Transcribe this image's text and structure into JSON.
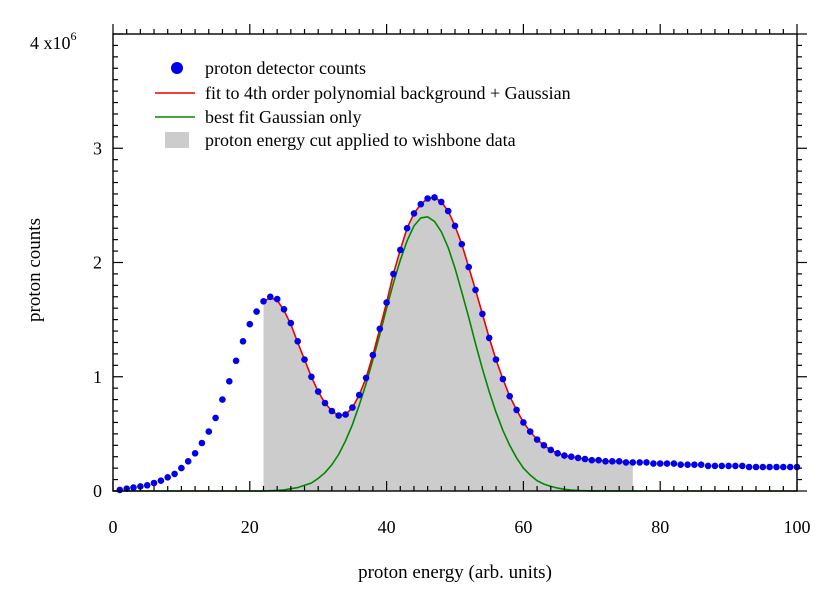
{
  "chart_data": {
    "type": "line",
    "title": "",
    "xlabel": "proton energy (arb. units)",
    "ylabel": "proton counts",
    "xlim": [
      0,
      100
    ],
    "ylim": [
      0,
      4
    ],
    "y_multiplier_label": "4 x10",
    "y_multiplier_exp": "6",
    "x_ticks": [
      "0",
      "20",
      "40",
      "60",
      "80",
      "100"
    ],
    "y_ticks": [
      "0",
      "1",
      "2",
      "3"
    ],
    "legend_position": "top-left",
    "legend": [
      {
        "label": "proton detector counts",
        "kind": "marker",
        "color": "#0000ee"
      },
      {
        "label": "fit to 4th order polynomial background + Gaussian",
        "kind": "line",
        "color": "#ee0000"
      },
      {
        "label": "best fit Gaussian only",
        "kind": "line",
        "color": "#008800"
      },
      {
        "label": "proton energy cut applied to wishbone data",
        "kind": "fill",
        "color": "#cccccc"
      }
    ],
    "series": [
      {
        "name": "proton detector counts",
        "type": "scatter",
        "color": "#0000ee",
        "x": [
          1,
          2,
          3,
          4,
          5,
          6,
          7,
          8,
          9,
          10,
          11,
          12,
          13,
          14,
          15,
          16,
          17,
          18,
          19,
          20,
          21,
          22,
          23,
          24,
          25,
          26,
          27,
          28,
          29,
          30,
          31,
          32,
          33,
          34,
          35,
          36,
          37,
          38,
          39,
          40,
          41,
          42,
          43,
          44,
          45,
          46,
          47,
          48,
          49,
          50,
          51,
          52,
          53,
          54,
          55,
          56,
          57,
          58,
          59,
          60,
          61,
          62,
          63,
          64,
          65,
          66,
          67,
          68,
          69,
          70,
          71,
          72,
          73,
          74,
          75,
          76,
          77,
          78,
          79,
          80,
          81,
          82,
          83,
          84,
          85,
          86,
          87,
          88,
          89,
          90,
          91,
          92,
          93,
          94,
          95,
          96,
          97,
          98,
          99,
          100
        ],
        "y": [
          0.01,
          0.02,
          0.03,
          0.04,
          0.05,
          0.07,
          0.09,
          0.12,
          0.15,
          0.2,
          0.26,
          0.33,
          0.42,
          0.52,
          0.64,
          0.8,
          0.96,
          1.14,
          1.31,
          1.46,
          1.57,
          1.66,
          1.7,
          1.68,
          1.59,
          1.47,
          1.31,
          1.15,
          1,
          0.87,
          0.77,
          0.7,
          0.66,
          0.67,
          0.73,
          0.84,
          0.99,
          1.19,
          1.42,
          1.65,
          1.9,
          2.11,
          2.3,
          2.43,
          2.51,
          2.56,
          2.57,
          2.53,
          2.45,
          2.32,
          2.16,
          1.96,
          1.76,
          1.55,
          1.34,
          1.15,
          0.98,
          0.83,
          0.71,
          0.6,
          0.52,
          0.45,
          0.4,
          0.36,
          0.33,
          0.31,
          0.3,
          0.29,
          0.28,
          0.27,
          0.27,
          0.26,
          0.26,
          0.26,
          0.25,
          0.25,
          0.25,
          0.25,
          0.24,
          0.24,
          0.24,
          0.24,
          0.23,
          0.23,
          0.23,
          0.23,
          0.22,
          0.22,
          0.22,
          0.22,
          0.22,
          0.22,
          0.21,
          0.21,
          0.21,
          0.21,
          0.21,
          0.21,
          0.21,
          0.21
        ]
      },
      {
        "name": "fit to 4th order polynomial background + Gaussian",
        "type": "line",
        "color": "#ee0000",
        "x": [
          22,
          23,
          24,
          25,
          26,
          27,
          28,
          29,
          30,
          31,
          32,
          33,
          34,
          35,
          36,
          37,
          38,
          39,
          40,
          41,
          42,
          43,
          44,
          45,
          46,
          47,
          48,
          49,
          50,
          51,
          52,
          53,
          54,
          55,
          56,
          57,
          58,
          59,
          60,
          61,
          62,
          63,
          64,
          65,
          66,
          67,
          68,
          69,
          70,
          71,
          72,
          73,
          74,
          75,
          76
        ],
        "y": [
          1.66,
          1.69,
          1.67,
          1.58,
          1.46,
          1.3,
          1.15,
          1,
          0.87,
          0.77,
          0.7,
          0.66,
          0.67,
          0.73,
          0.84,
          0.99,
          1.19,
          1.42,
          1.65,
          1.9,
          2.11,
          2.3,
          2.43,
          2.51,
          2.56,
          2.57,
          2.53,
          2.45,
          2.32,
          2.16,
          1.96,
          1.76,
          1.55,
          1.34,
          1.15,
          0.98,
          0.83,
          0.71,
          0.6,
          0.52,
          0.45,
          0.4,
          0.36,
          0.33,
          0.31,
          0.3,
          0.29,
          0.28,
          0.27,
          0.27,
          0.26,
          0.26,
          0.26,
          0.25,
          0.25
        ]
      },
      {
        "name": "best fit Gaussian only",
        "type": "line",
        "color": "#008800",
        "x": [
          0,
          10,
          20,
          22,
          24,
          25,
          26,
          27,
          28,
          29,
          30,
          31,
          32,
          33,
          34,
          35,
          36,
          37,
          38,
          39,
          40,
          41,
          42,
          43,
          44,
          45,
          46,
          47,
          48,
          49,
          50,
          51,
          52,
          53,
          54,
          55,
          56,
          57,
          58,
          59,
          60,
          61,
          62,
          63,
          64,
          65,
          66,
          67,
          68,
          70,
          72,
          76,
          80,
          90,
          100
        ],
        "y": [
          0,
          0,
          0,
          0,
          0.005,
          0.01,
          0.02,
          0.03,
          0.05,
          0.07,
          0.11,
          0.16,
          0.23,
          0.32,
          0.44,
          0.58,
          0.75,
          0.94,
          1.15,
          1.37,
          1.6,
          1.82,
          2.02,
          2.19,
          2.32,
          2.39,
          2.4,
          2.36,
          2.27,
          2.13,
          1.95,
          1.74,
          1.52,
          1.29,
          1.07,
          0.87,
          0.69,
          0.53,
          0.4,
          0.29,
          0.2,
          0.14,
          0.09,
          0.06,
          0.04,
          0.025,
          0.015,
          0.008,
          0.004,
          0.001,
          0,
          0,
          0,
          0,
          0
        ]
      }
    ],
    "shaded_region": {
      "name": "proton energy cut applied to wishbone data",
      "color": "#cccccc",
      "x_range": [
        22,
        76
      ],
      "follows_series": "fit to 4th order polynomial background + Gaussian"
    }
  }
}
